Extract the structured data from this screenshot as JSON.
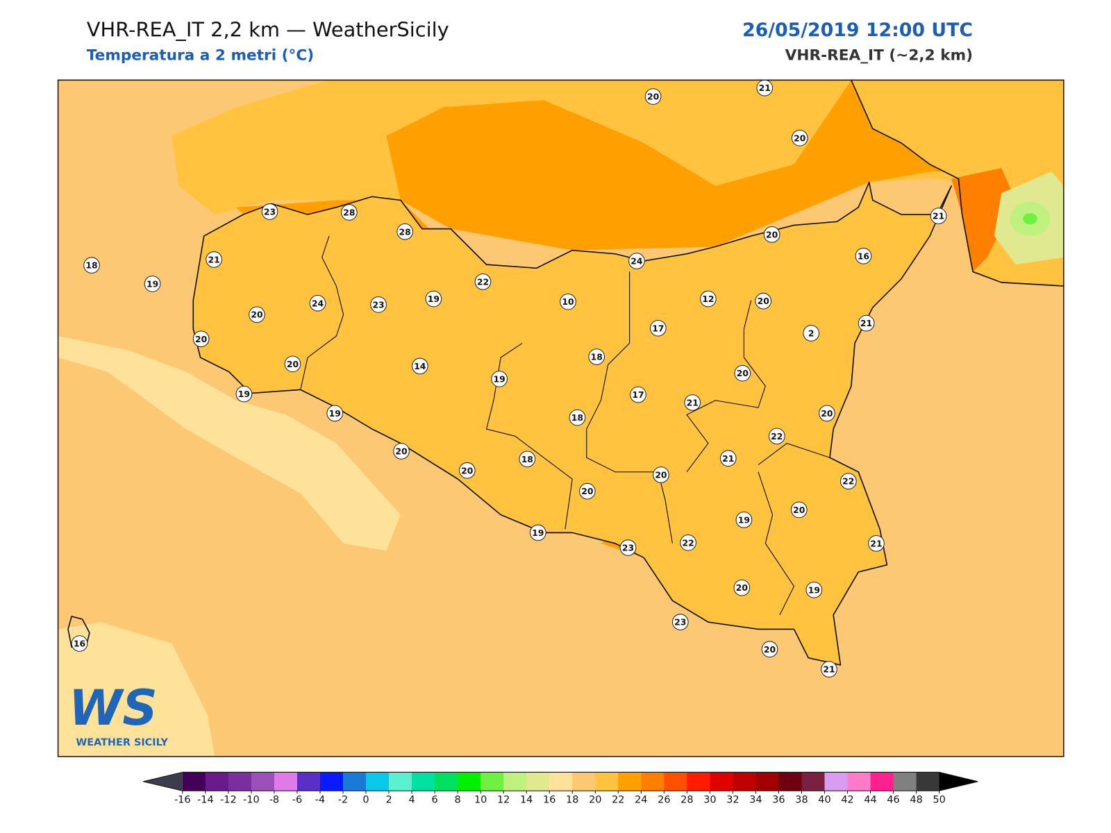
{
  "header": {
    "title": "VHR-REA_IT 2,2 km — WeatherSicily",
    "subtitle": "Temperatura a 2 metri (°C)",
    "datetime": "26/05/2019 12:00 UTC",
    "model": "VHR-REA_IT (~2,2 km)"
  },
  "stations": [
    20,
    21,
    20,
    23,
    28,
    28,
    21,
    20,
    16,
    18,
    21,
    24,
    19,
    22,
    19,
    24,
    23,
    10,
    12,
    20,
    20,
    17,
    2,
    21,
    20,
    18,
    20,
    14,
    19,
    20,
    19,
    17,
    21,
    19,
    20,
    18,
    22,
    20,
    18,
    21,
    20,
    20,
    22,
    20,
    20,
    19,
    19,
    23,
    22,
    21,
    20,
    19,
    23,
    20,
    21,
    16
  ],
  "colorbar": {
    "ticks": [
      -16,
      -14,
      -12,
      -10,
      -8,
      -6,
      -4,
      -2,
      0,
      2,
      4,
      6,
      8,
      10,
      12,
      14,
      16,
      18,
      20,
      22,
      24,
      26,
      28,
      30,
      32,
      34,
      36,
      38,
      40,
      42,
      44,
      46,
      48,
      50
    ],
    "colors": [
      "#45005a",
      "#6a1a8a",
      "#7b2e9e",
      "#9b4fb8",
      "#e07ae8",
      "#5a2fc8",
      "#0a1aff",
      "#1a7ad8",
      "#0ac8e8",
      "#5af0d0",
      "#00e0a0",
      "#00e060",
      "#00f000",
      "#70f040",
      "#c0f080",
      "#e0e890",
      "#ffe29a",
      "#fdc874",
      "#ffc340",
      "#ffa000",
      "#ff7f00",
      "#ff5000",
      "#ff1a00",
      "#e00000",
      "#c00000",
      "#a00000",
      "#700010",
      "#7a2040",
      "#d89cf0",
      "#ff7ac8",
      "#ff2090",
      "#808080",
      "#383838"
    ],
    "under_color": "#3c3c4c",
    "over_color": "#000000"
  },
  "logo": {
    "mark": "WS",
    "name": "WEATHER SICILY"
  }
}
